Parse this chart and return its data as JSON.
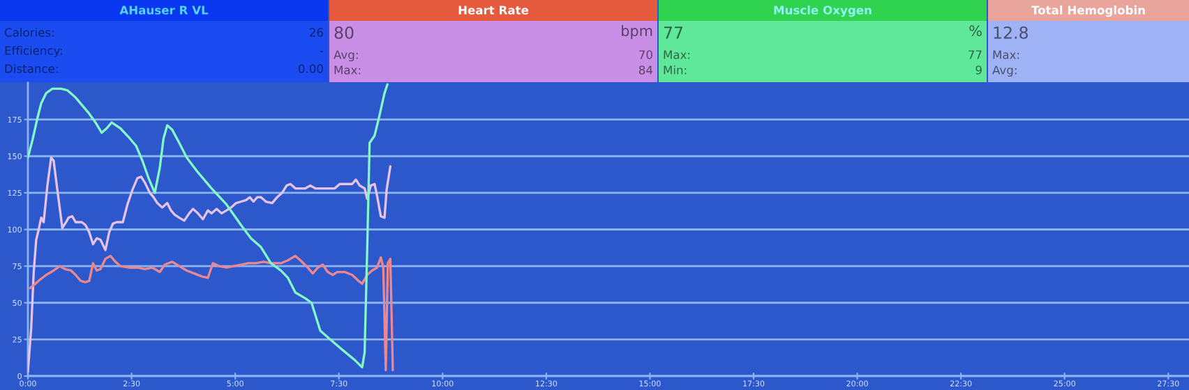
{
  "chart_data": [
    {
      "type": "other",
      "title": "AHauser R VL",
      "annotations": [
        "Calories:",
        "Efficiency:",
        "Distance:"
      ],
      "value_labels": [
        "26",
        "-",
        "0.00"
      ],
      "colors": [
        "#0a37f0",
        "#1a4cf2",
        "#55d2ff"
      ]
    },
    {
      "type": "other",
      "title": "Heart Rate",
      "subtitle": "80",
      "annotations": [
        "Avg:",
        "Max:"
      ],
      "value_labels": [
        "bpm",
        "70",
        "84"
      ],
      "colors": [
        "#e55a3c",
        "#c98fe6",
        "#ffffff"
      ]
    },
    {
      "type": "other",
      "title": "Muscle Oxygen",
      "subtitle": "77",
      "annotations": [
        "Max:",
        "Min:"
      ],
      "value_labels": [
        "%",
        "77",
        "9"
      ],
      "colors": [
        "#2fd34f",
        "#5fe79a",
        "#8ff5f0"
      ]
    },
    {
      "type": "other",
      "title": "Total Hemoglobin",
      "subtitle": "12.8",
      "annotations": [
        "Max:",
        "Avg:"
      ],
      "colors": [
        "#e9a59c",
        "#9fb2f5",
        "#ffffff"
      ]
    },
    {
      "type": "line",
      "xlim": [
        0,
        28
      ],
      "ylim": [
        0,
        200
      ],
      "xticks": [
        {
          "value": 0,
          "label": "0:00"
        },
        {
          "value": 2.5,
          "label": "2:30"
        },
        {
          "value": 5,
          "label": "5:00"
        },
        {
          "value": 7.5,
          "label": "7:30"
        },
        {
          "value": 10,
          "label": "10:00"
        },
        {
          "value": 12.5,
          "label": "12:30"
        },
        {
          "value": 15,
          "label": "15:00"
        },
        {
          "value": 17.5,
          "label": "17:30"
        },
        {
          "value": 20,
          "label": "20:00"
        },
        {
          "value": 22.5,
          "label": "22:30"
        },
        {
          "value": 25,
          "label": "25:00"
        },
        {
          "value": 27.5,
          "label": "27:30"
        }
      ],
      "yticks": [
        0,
        25,
        50,
        75,
        100,
        125,
        150,
        175
      ],
      "grid": "y",
      "series": [
        {
          "color": "#e6c3e6",
          "x": [
            0.0,
            0.08,
            0.14,
            0.2,
            0.26,
            0.32,
            0.38,
            0.47,
            0.56,
            0.62,
            0.71,
            0.83,
            0.92,
            0.98,
            1.07,
            1.15,
            1.3,
            1.39,
            1.48,
            1.57,
            1.66,
            1.75,
            1.87,
            1.96,
            2.05,
            2.14,
            2.29,
            2.4,
            2.52,
            2.64,
            2.73,
            2.82,
            2.94,
            3.03,
            3.12,
            3.24,
            3.36,
            3.45,
            3.54,
            3.65,
            3.77,
            3.89,
            3.98,
            4.1,
            4.22,
            4.34,
            4.43,
            4.55,
            4.67,
            4.79,
            4.9,
            5.02,
            5.14,
            5.26,
            5.35,
            5.44,
            5.53,
            5.62,
            5.74,
            5.89,
            6.01,
            6.13,
            6.24,
            6.33,
            6.45,
            6.69,
            6.81,
            6.93,
            7.17,
            7.4,
            7.52,
            7.82,
            7.91,
            8.0,
            8.12,
            8.18,
            8.27,
            8.36,
            8.42,
            8.51,
            8.6,
            8.65,
            8.74
          ],
          "values": [
            3,
            33,
            71,
            93,
            100,
            108,
            105,
            130,
            149,
            147,
            127,
            101,
            105,
            108,
            109,
            105,
            105,
            103,
            98,
            90,
            94,
            93,
            86,
            98,
            104,
            105,
            105,
            117,
            127,
            135,
            136,
            132,
            125,
            122,
            118,
            115,
            118,
            113,
            110,
            108,
            106,
            111,
            114,
            111,
            107,
            113,
            111,
            114,
            111,
            113,
            115,
            118,
            119,
            120,
            122,
            119,
            122,
            122,
            119,
            118,
            122,
            125,
            130,
            131,
            128,
            128,
            130,
            128,
            128,
            128,
            131,
            131,
            134,
            130,
            128,
            121,
            130,
            131,
            123,
            109,
            108,
            127,
            143
          ]
        },
        {
          "color": "#ec8790",
          "x": [
            0.05,
            0.14,
            0.26,
            0.44,
            0.62,
            0.77,
            0.89,
            1.04,
            1.15,
            1.27,
            1.39,
            1.48,
            1.57,
            1.66,
            1.75,
            1.87,
            1.99,
            2.11,
            2.23,
            2.46,
            2.64,
            2.82,
            3.0,
            3.18,
            3.3,
            3.48,
            3.65,
            3.83,
            4.01,
            4.19,
            4.34,
            4.46,
            4.61,
            4.79,
            4.96,
            5.14,
            5.32,
            5.5,
            5.68,
            5.86,
            6.1,
            6.27,
            6.45,
            6.57,
            6.75,
            6.87,
            6.99,
            7.11,
            7.23,
            7.35,
            7.46,
            7.64,
            7.82,
            7.97,
            8.06,
            8.18,
            8.3,
            8.42,
            8.51,
            8.57,
            8.63,
            8.68,
            8.74,
            8.8
          ],
          "values": [
            60,
            62,
            65,
            69,
            72,
            75,
            73,
            72,
            69,
            65,
            64,
            65,
            77,
            72,
            73,
            80,
            82,
            78,
            75,
            74,
            74,
            73,
            74,
            71,
            76,
            78,
            75,
            72,
            70,
            68,
            67,
            77,
            75,
            74,
            75,
            76,
            77,
            77,
            78,
            77,
            77,
            79,
            82,
            79,
            74,
            70,
            74,
            76,
            71,
            69,
            71,
            71,
            69,
            65,
            63,
            69,
            72,
            74,
            81,
            74,
            4,
            77,
            80,
            4
          ]
        },
        {
          "color": "#84f7c4",
          "x": [
            0.0,
            0.11,
            0.23,
            0.32,
            0.44,
            0.59,
            0.8,
            0.95,
            1.15,
            1.45,
            1.63,
            1.78,
            1.9,
            2.02,
            2.23,
            2.46,
            2.61,
            2.76,
            2.91,
            3.06,
            3.18,
            3.27,
            3.36,
            3.48,
            3.65,
            3.83,
            4.07,
            4.43,
            4.79,
            5.14,
            5.38,
            5.62,
            5.86,
            6.1,
            6.27,
            6.45,
            6.69,
            6.84,
            7.05,
            7.29,
            7.58,
            7.88,
            8.06,
            8.12,
            8.18,
            8.24,
            8.36,
            8.48,
            8.6,
            8.67
          ],
          "values": [
            149,
            161,
            176,
            186,
            193,
            196,
            196,
            195,
            190,
            180,
            173,
            166,
            169,
            173,
            169,
            162,
            157,
            147,
            135,
            125,
            142,
            162,
            171,
            168,
            159,
            149,
            140,
            128,
            117,
            103,
            94,
            88,
            77,
            72,
            67,
            57,
            53,
            50,
            31,
            25,
            18,
            11,
            6,
            16,
            84,
            159,
            164,
            178,
            193,
            199
          ]
        }
      ]
    }
  ]
}
